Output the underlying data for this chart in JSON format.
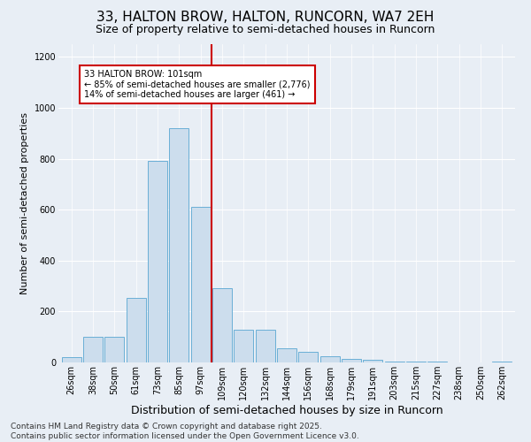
{
  "title1": "33, HALTON BROW, HALTON, RUNCORN, WA7 2EH",
  "title2": "Size of property relative to semi-detached houses in Runcorn",
  "xlabel": "Distribution of semi-detached houses by size in Runcorn",
  "ylabel": "Number of semi-detached properties",
  "categories": [
    "26sqm",
    "38sqm",
    "50sqm",
    "61sqm",
    "73sqm",
    "85sqm",
    "97sqm",
    "109sqm",
    "120sqm",
    "132sqm",
    "144sqm",
    "156sqm",
    "168sqm",
    "179sqm",
    "191sqm",
    "203sqm",
    "215sqm",
    "227sqm",
    "238sqm",
    "250sqm",
    "262sqm"
  ],
  "values": [
    20,
    100,
    100,
    255,
    790,
    920,
    610,
    290,
    130,
    130,
    55,
    40,
    25,
    15,
    10,
    5,
    3,
    2,
    1,
    1,
    5
  ],
  "bar_color": "#ccdded",
  "bar_edge_color": "#6aafd6",
  "vline_color": "#cc0000",
  "annotation_text": "33 HALTON BROW: 101sqm\n← 85% of semi-detached houses are smaller (2,776)\n14% of semi-detached houses are larger (461) →",
  "annotation_box_facecolor": "#ffffff",
  "annotation_box_edgecolor": "#cc0000",
  "ylim": [
    0,
    1250
  ],
  "yticks": [
    0,
    200,
    400,
    600,
    800,
    1000,
    1200
  ],
  "footer_line1": "Contains HM Land Registry data © Crown copyright and database right 2025.",
  "footer_line2": "Contains public sector information licensed under the Open Government Licence v3.0.",
  "bg_color": "#e8eef5",
  "grid_color": "#ffffff",
  "title1_fontsize": 11,
  "title2_fontsize": 9,
  "tick_fontsize": 7,
  "xlabel_fontsize": 9,
  "ylabel_fontsize": 8,
  "annotation_fontsize": 7,
  "footer_fontsize": 6.5
}
